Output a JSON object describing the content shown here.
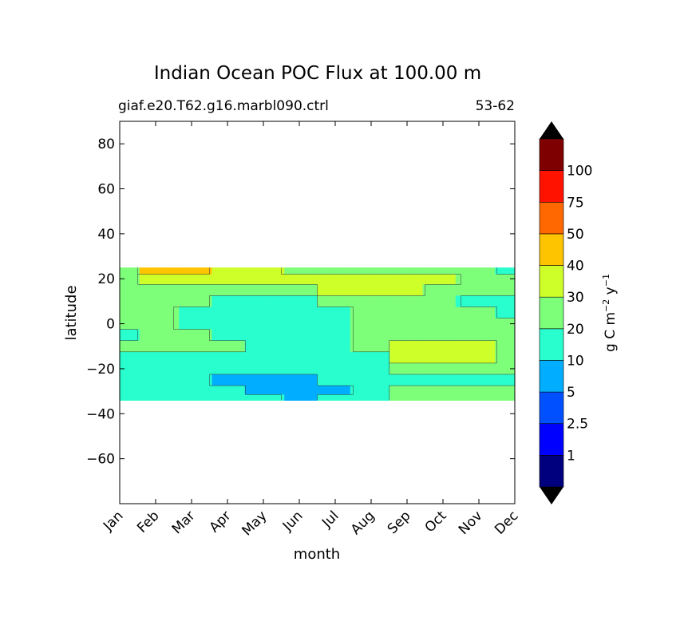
{
  "chart_data": {
    "type": "heatmap",
    "title": "Indian Ocean POC Flux at 100.00 m",
    "subtitle_left": "giaf.e20.T62.g16.marbl090.ctrl",
    "subtitle_right": "53-62",
    "xlabel": "month",
    "ylabel": "latitude",
    "x_categories": [
      "Jan",
      "Feb",
      "Mar",
      "Apr",
      "May",
      "Jun",
      "Jul",
      "Aug",
      "Sep",
      "Oct",
      "Nov",
      "Dec"
    ],
    "ylim": [
      -80,
      90
    ],
    "y_ticks": [
      80,
      60,
      40,
      20,
      0,
      -20,
      -40,
      -60
    ],
    "y_tick_labels": [
      "80",
      "60",
      "40",
      "20",
      "0",
      "−20",
      "−40",
      "−60"
    ],
    "data_lat_range": [
      -34,
      25
    ],
    "colorbar": {
      "label_main": "g C m",
      "label_exp1": "−2",
      "label_mid": " y",
      "label_exp2": "−1",
      "levels": [
        1,
        2.5,
        5,
        10,
        20,
        30,
        40,
        50,
        75,
        100
      ],
      "level_labels": [
        "1",
        "2.5",
        "5",
        "10",
        "20",
        "30",
        "40",
        "50",
        "75",
        "100"
      ],
      "colors": [
        "#00007f",
        "#0000ff",
        "#0050ff",
        "#00adff",
        "#29ffce",
        "#7dff7a",
        "#ceff29",
        "#ffc400",
        "#ff6800",
        "#ff1300",
        "#7f0000"
      ],
      "under_color": "#000000",
      "over_color": "#000000"
    },
    "field": {
      "description_levels": "bin index per month (Jan..Dec) per latitude row; bins: 0:<1 1:1-2.5 2:2.5-5 3:5-10 4:10-20 5:20-30 6:30-40 7:40-50",
      "latitudes": [
        24,
        20,
        15,
        10,
        5,
        0,
        -5,
        -10,
        -15,
        -20,
        -25,
        -30,
        -33
      ],
      "bins": [
        [
          5,
          7,
          7,
          6,
          6,
          5,
          5,
          5,
          5,
          5,
          5,
          4
        ],
        [
          5,
          6,
          6,
          6,
          6,
          6,
          6,
          6,
          6,
          6,
          5,
          5
        ],
        [
          5,
          5,
          5,
          5,
          5,
          5,
          6,
          6,
          6,
          5,
          5,
          5
        ],
        [
          5,
          5,
          5,
          4,
          4,
          4,
          5,
          5,
          5,
          5,
          4,
          4
        ],
        [
          5,
          5,
          4,
          4,
          4,
          4,
          4,
          5,
          5,
          5,
          5,
          4
        ],
        [
          5,
          5,
          4,
          4,
          4,
          4,
          4,
          5,
          5,
          5,
          5,
          5
        ],
        [
          4,
          5,
          5,
          4,
          4,
          4,
          4,
          5,
          5,
          5,
          5,
          5
        ],
        [
          5,
          5,
          5,
          5,
          4,
          4,
          4,
          5,
          6,
          6,
          6,
          5
        ],
        [
          4,
          4,
          4,
          4,
          4,
          4,
          4,
          4,
          6,
          6,
          6,
          5
        ],
        [
          4,
          4,
          4,
          4,
          4,
          4,
          4,
          4,
          5,
          5,
          5,
          5
        ],
        [
          4,
          4,
          4,
          3,
          3,
          3,
          4,
          4,
          4,
          4,
          4,
          4
        ],
        [
          4,
          4,
          4,
          4,
          3,
          3,
          3,
          4,
          5,
          5,
          5,
          5
        ],
        [
          4,
          4,
          4,
          4,
          4,
          3,
          4,
          4,
          5,
          5,
          5,
          5
        ]
      ]
    }
  }
}
